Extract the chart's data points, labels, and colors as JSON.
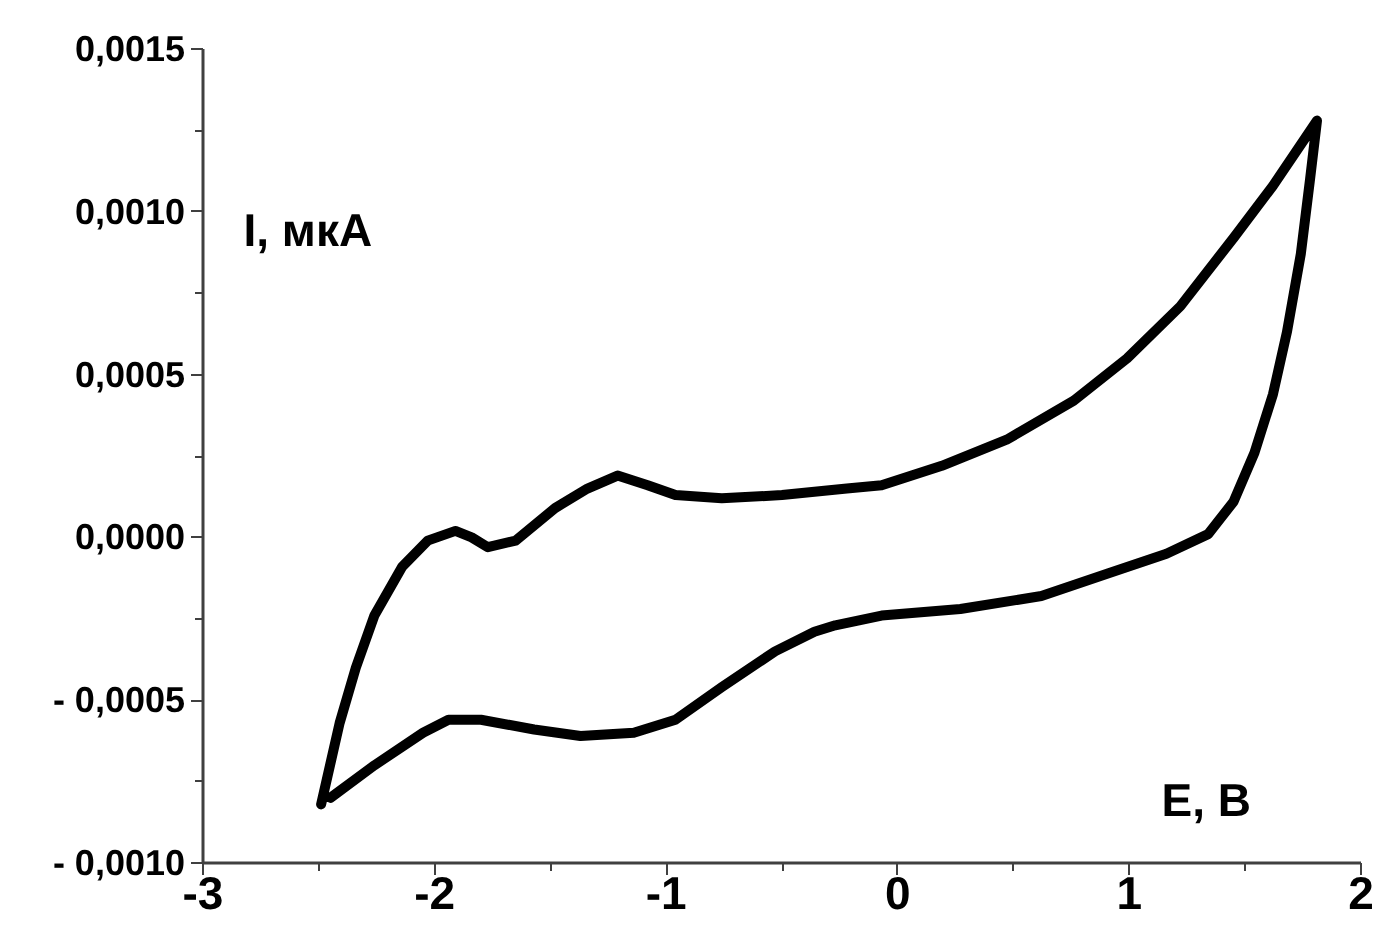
{
  "chart_data": {
    "type": "line",
    "xlabel": "E, B",
    "ylabel": "I, мкА",
    "series": [
      {
        "color": "#000000",
        "x": [
          -2.49,
          -2.41,
          -2.34,
          -2.26,
          -2.14,
          -2.03,
          -1.91,
          -1.84,
          -1.77,
          -1.65,
          -1.48,
          -1.34,
          -1.21,
          -1.08,
          -0.96,
          -0.76,
          -0.5,
          -0.22,
          -0.07,
          0.19,
          0.47,
          0.76,
          0.99,
          1.22,
          1.45,
          1.62,
          1.81,
          1.78,
          1.74,
          1.68,
          1.62,
          1.54,
          1.45,
          1.34,
          1.16,
          0.91,
          0.62,
          0.27,
          -0.07,
          -0.27,
          -0.36,
          -0.53,
          -0.76,
          -0.96,
          -1.14,
          -1.37,
          -1.57,
          -1.8,
          -1.94,
          -2.05,
          -2.26,
          -2.45
        ],
        "values": [
          -0.00082,
          -0.00057,
          -0.0004,
          -0.00024,
          -9e-05,
          -1e-05,
          2e-05,
          0.0,
          -3e-05,
          -1e-05,
          9e-05,
          0.00015,
          0.00019,
          0.00016,
          0.00013,
          0.00012,
          0.00013,
          0.00015,
          0.00016,
          0.00022,
          0.0003,
          0.00042,
          0.00055,
          0.00071,
          0.00092,
          0.00108,
          0.00128,
          0.0011,
          0.00087,
          0.00063,
          0.00044,
          0.00026,
          0.00011,
          1e-05,
          -5e-05,
          -0.00011,
          -0.00018,
          -0.00022,
          -0.00024,
          -0.00027,
          -0.00029,
          -0.00035,
          -0.00046,
          -0.00056,
          -0.0006,
          -0.00061,
          -0.00059,
          -0.00056,
          -0.00056,
          -0.0006,
          -0.0007,
          -0.0008
        ]
      }
    ],
    "xlim": [
      -3,
      2
    ],
    "ylim": [
      -0.001,
      0.0015
    ],
    "xticks": [
      -3,
      {
        "value": -2.5,
        "label": null
      },
      -2,
      {
        "value": -1.5,
        "label": null
      },
      -1,
      {
        "value": -0.5,
        "label": null
      },
      0,
      {
        "value": 0.5,
        "label": null
      },
      1,
      {
        "value": 1.5,
        "label": null
      },
      2
    ],
    "yticks": [
      {
        "value": -0.001,
        "label": "- 0,0010"
      },
      {
        "value": -0.00075,
        "label": null
      },
      {
        "value": -0.0005,
        "label": "- 0,0005"
      },
      {
        "value": -0.00025,
        "label": null
      },
      {
        "value": 0.0,
        "label": "0,0000"
      },
      {
        "value": 0.00025,
        "label": null
      },
      {
        "value": 0.0005,
        "label": "0,0005"
      },
      {
        "value": 0.00075,
        "label": null
      },
      {
        "value": 0.001,
        "label": "0,0010"
      },
      {
        "value": 0.00125,
        "label": null
      },
      {
        "value": 0.0015,
        "label": "0,0015"
      }
    ],
    "grid": false,
    "line_style": "solid"
  }
}
